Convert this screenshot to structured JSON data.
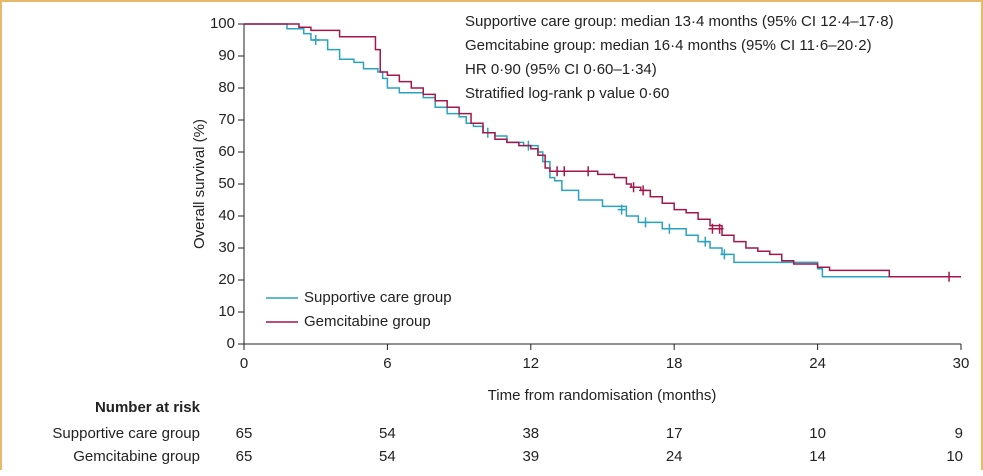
{
  "chart_data": {
    "type": "step",
    "annotations": [
      "Supportive care group: median 13·4 months (95% CI 12·4–17·8)",
      "Gemcitabine group: median 16·4 months (95% CI 11·6–20·2)",
      "HR 0·90 (95% CI 0·60–1·34)",
      "Stratified log-rank p value 0·60"
    ],
    "x_label": "Time from randomisation (months)",
    "y_label": "Overall survival (%)",
    "xlim": [
      0,
      30
    ],
    "xticks": [
      0,
      6,
      12,
      18,
      24,
      30
    ],
    "ylim": [
      0,
      100
    ],
    "yticks": [
      0,
      10,
      20,
      30,
      40,
      50,
      60,
      70,
      80,
      90,
      100
    ],
    "legend": "lower left",
    "series": [
      {
        "name": "Supportive care group",
        "color": "#2aa3c2",
        "x": [
          0,
          1.8,
          2.5,
          2.8,
          3.5,
          4,
          4.6,
          5,
          5.6,
          5.8,
          6,
          6.5,
          7.5,
          8,
          8.5,
          9,
          9.3,
          9.6,
          10,
          10.5,
          11,
          11.7,
          12.3,
          12.5,
          12.8,
          13,
          13.3,
          14,
          15,
          16,
          16.5,
          17.5,
          18.5,
          19,
          19.5,
          20,
          20.5,
          24,
          24.2,
          30
        ],
        "values": [
          100,
          98.5,
          97,
          95,
          92,
          89,
          88,
          86,
          85,
          83,
          80,
          78.5,
          77,
          74,
          72,
          71,
          69,
          68,
          66,
          65,
          63,
          62,
          60,
          57,
          52,
          51,
          48,
          45,
          43,
          40,
          38,
          36,
          34,
          32,
          30,
          28,
          25.5,
          23.5,
          21,
          21
        ],
        "censored_x": [
          3,
          10.2,
          11.9,
          15.8,
          16.8,
          17.8,
          19.3,
          20.1
        ],
        "censored_values": [
          95,
          66,
          62,
          42,
          38,
          36,
          32,
          28
        ]
      },
      {
        "name": "Gemcitabine group",
        "color": "#a3174a",
        "x": [
          0,
          2.3,
          2.8,
          4,
          5.5,
          5.7,
          6,
          6.5,
          7,
          7.5,
          8,
          8.5,
          9,
          9.5,
          10,
          10.5,
          11,
          11.5,
          12,
          12.3,
          12.6,
          12.8,
          14.8,
          15.5,
          16,
          16.2,
          16.6,
          17,
          17.5,
          18,
          18.5,
          19,
          19.5,
          20,
          20.5,
          21,
          21.5,
          22,
          22.5,
          23,
          24,
          24.5,
          27,
          30
        ],
        "values": [
          100,
          99,
          98,
          96,
          92,
          85,
          84,
          82,
          80,
          78,
          76,
          74,
          72,
          69,
          66,
          64,
          63,
          62,
          61,
          59,
          55,
          54,
          53,
          52,
          50,
          49,
          48,
          46,
          44,
          42,
          41,
          39,
          37,
          34,
          32,
          30,
          29,
          28,
          26,
          25,
          24,
          23,
          21,
          21
        ],
        "censored_x": [
          13.1,
          13.4,
          14.4,
          16.3,
          16.7,
          19.6,
          19.9,
          29.5
        ],
        "censored_values": [
          54,
          54,
          54,
          49,
          48,
          36,
          36,
          21
        ]
      }
    ],
    "number_at_risk": {
      "title": "Number at risk",
      "rows": [
        {
          "name": "Supportive care group",
          "values": [
            65,
            54,
            38,
            17,
            10,
            9
          ]
        },
        {
          "name": "Gemcitabine group",
          "values": [
            65,
            54,
            39,
            24,
            14,
            10
          ]
        }
      ]
    }
  }
}
